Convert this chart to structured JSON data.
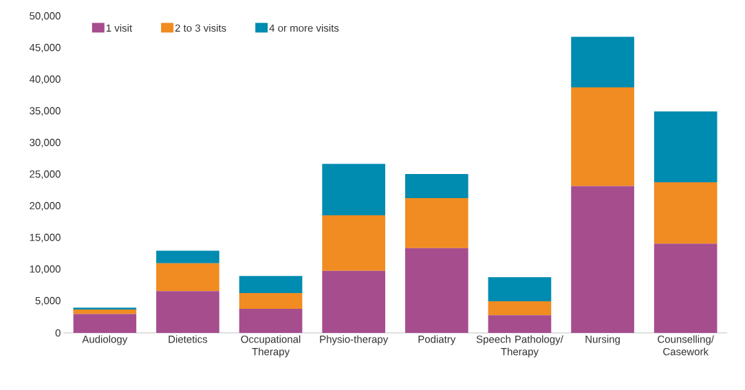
{
  "chart_data": {
    "type": "bar",
    "stacked": true,
    "legend": "top",
    "categories": [
      "Audiology",
      "Dietetics",
      "Occupational Therapy",
      "Physio-therapy",
      "Podiatry",
      "Speech Pathology/ Therapy",
      "Nursing",
      "Counselling/ Casework"
    ],
    "series": [
      {
        "name": "1 visit",
        "color": "#a64d8e",
        "values": [
          3000,
          6600,
          3800,
          9800,
          13400,
          2800,
          23200,
          14100
        ]
      },
      {
        "name": "2 to 3 visits",
        "color": "#f08c21",
        "values": [
          700,
          4400,
          2500,
          8800,
          7900,
          2200,
          15600,
          9700
        ]
      },
      {
        "name": "4 or more visits",
        "color": "#008bb0",
        "values": [
          300,
          2000,
          2700,
          8100,
          3800,
          3800,
          8000,
          11200
        ]
      }
    ],
    "ylim": [
      0,
      50000
    ],
    "yticks": [
      0,
      {
        "value": 5000,
        "label": "5,000"
      },
      {
        "value": 10000,
        "label": "10,000"
      },
      {
        "value": 15000,
        "label": "15,000"
      },
      {
        "value": 20000,
        "label": "20,000"
      },
      {
        "value": 25000,
        "label": "25,000"
      },
      {
        "value": 30000,
        "label": "30,000"
      },
      {
        "value": 35000,
        "label": "35,000"
      },
      {
        "value": 40000,
        "label": "40,000"
      },
      {
        "value": 45000,
        "label": "45,000"
      },
      {
        "value": 50000,
        "label": "50,000"
      }
    ]
  }
}
